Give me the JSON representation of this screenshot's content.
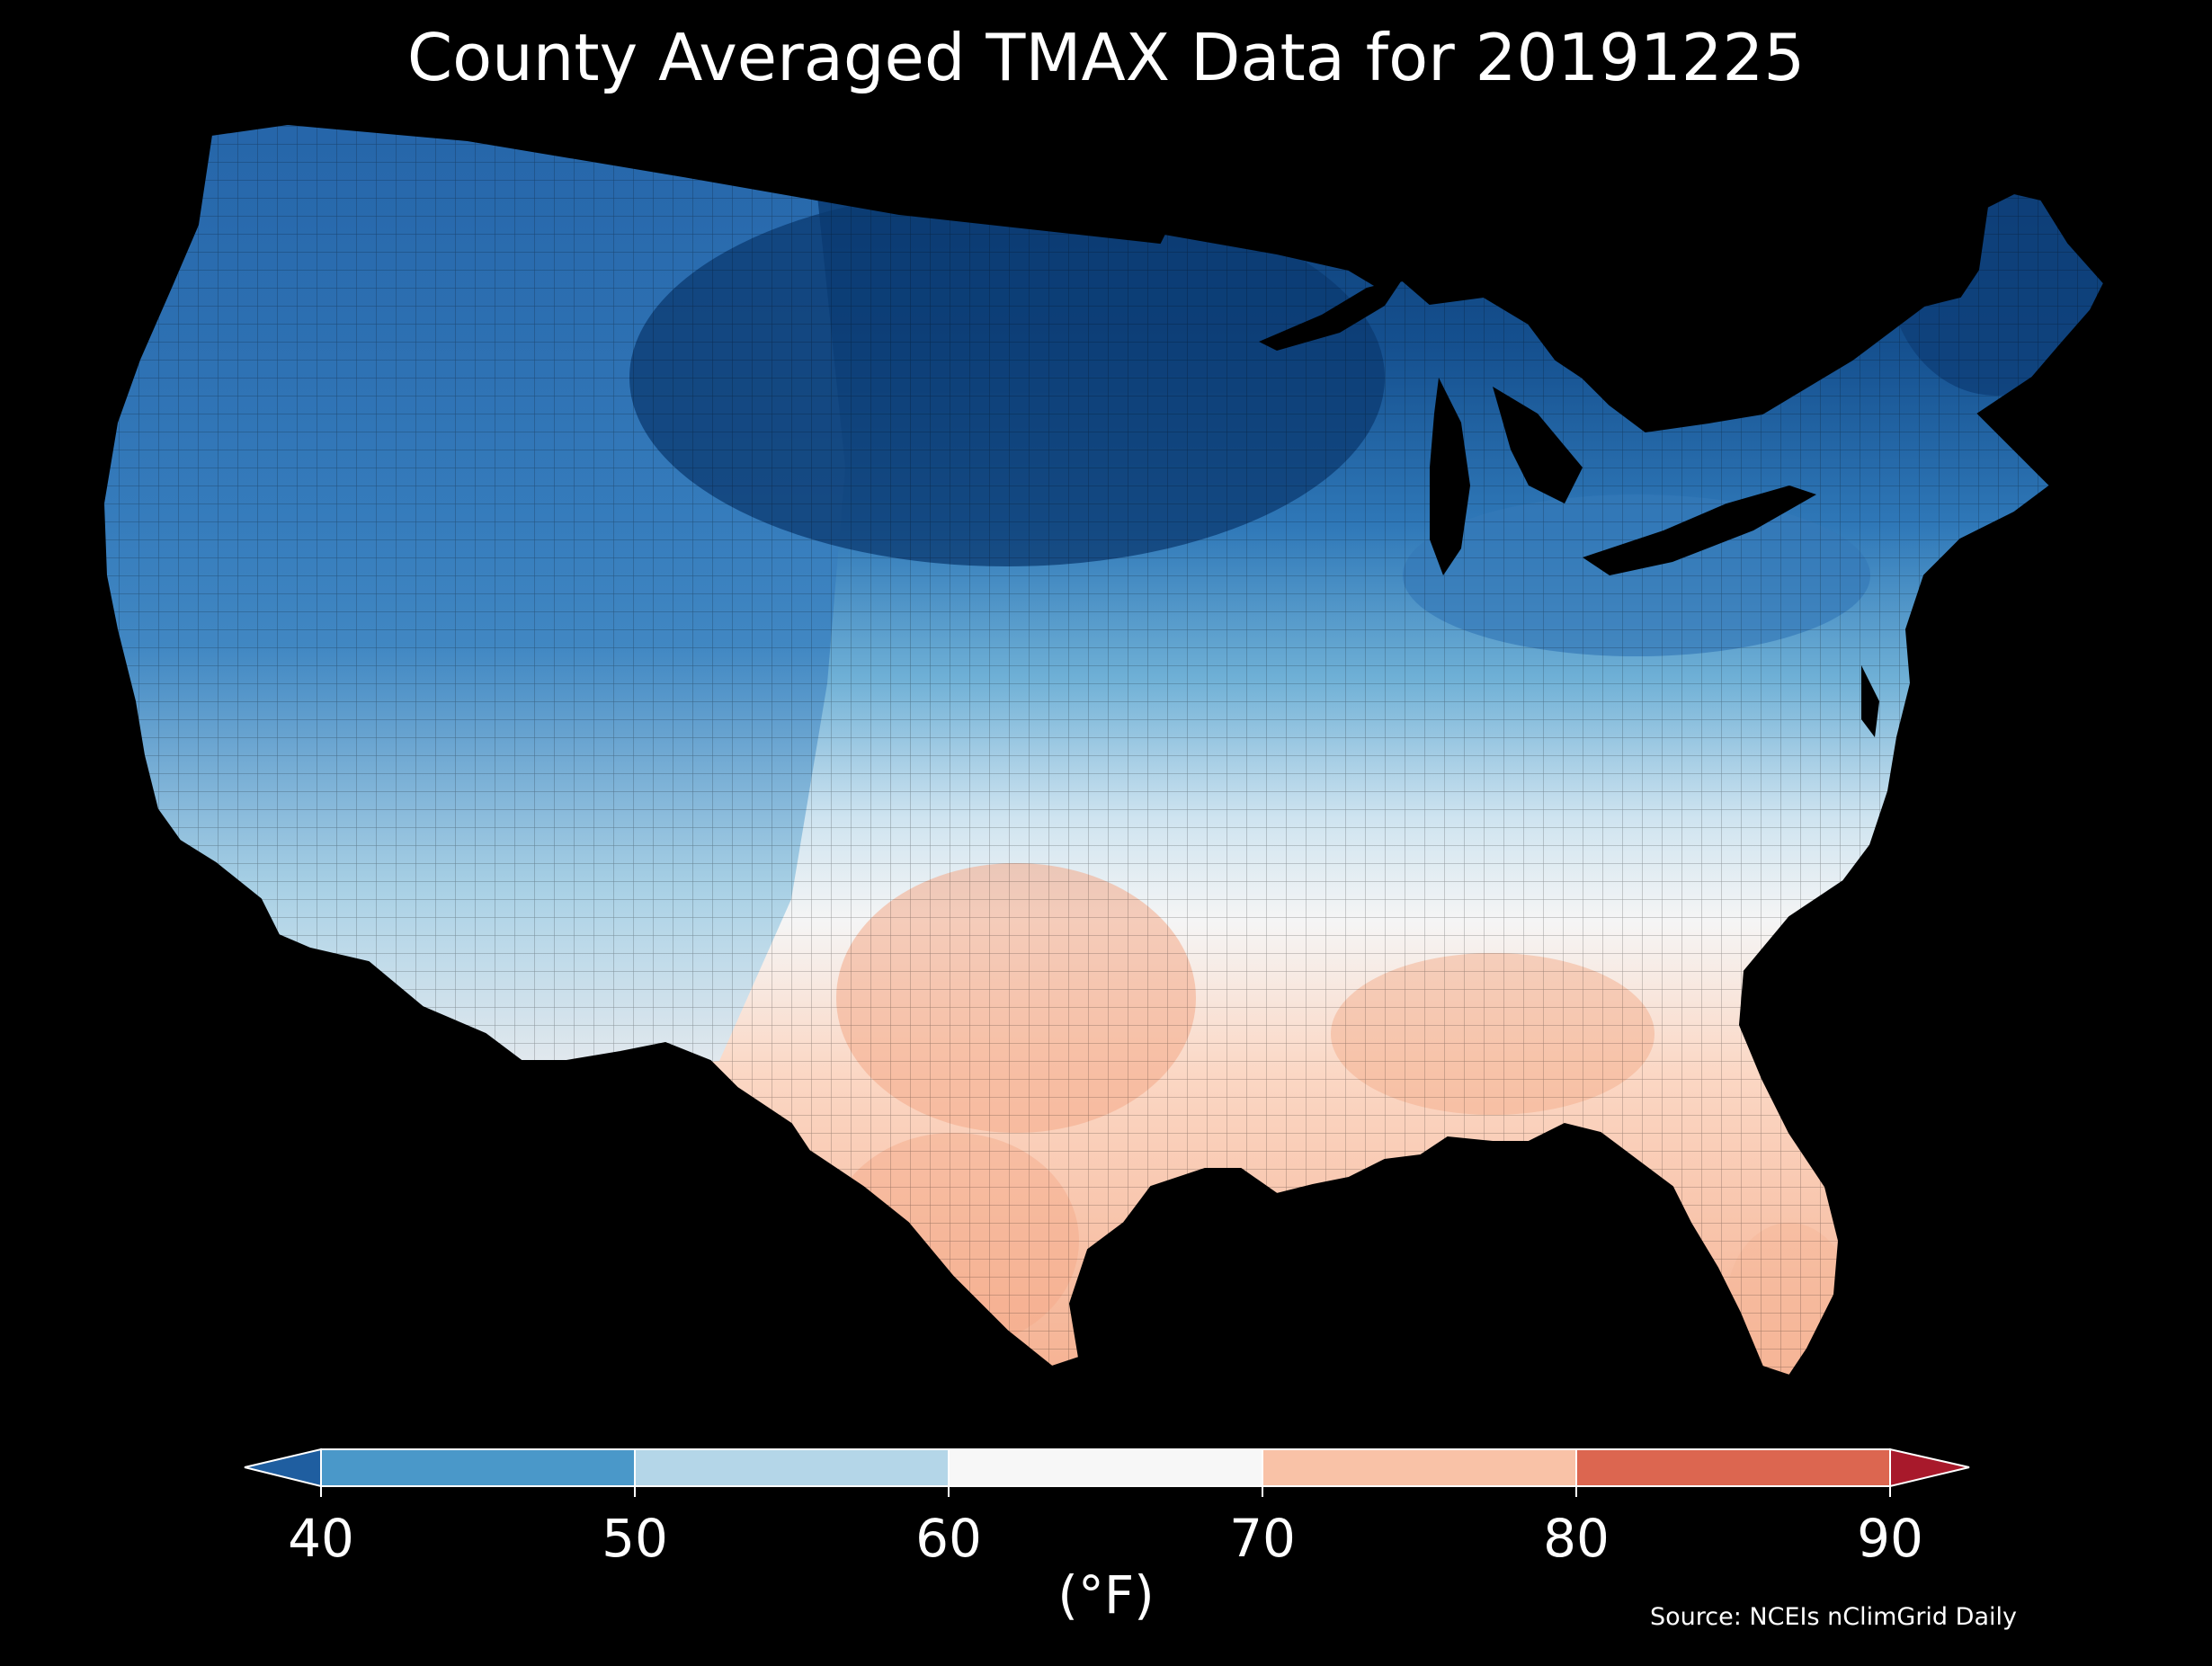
{
  "title": "County Averaged TMAX Data for 20191225",
  "source": "Source: NCEIs nClimGrid Daily",
  "colorbar": {
    "unit": "(°F)",
    "ticks": [
      "40",
      "50",
      "60",
      "70",
      "80",
      "90"
    ],
    "bins": [
      {
        "from": 40,
        "to": 50,
        "color": "#4a98c9"
      },
      {
        "from": 50,
        "to": 60,
        "color": "#b4d6e8"
      },
      {
        "from": 60,
        "to": 70,
        "color": "#f7f7f7"
      },
      {
        "from": 70,
        "to": 80,
        "color": "#f9c2a7"
      },
      {
        "from": 80,
        "to": 90,
        "color": "#dc6650"
      }
    ],
    "under_color": "#1f5ea0",
    "over_color": "#a8192b"
  },
  "map": {
    "region": "Contiguous United States",
    "background": "#000000",
    "fill_gradient": [
      "#0b3a70",
      "#1f63ad",
      "#4b98ca",
      "#b4d6e8",
      "#f5f5f5",
      "#f9c9b0",
      "#f4ad8f"
    ]
  }
}
